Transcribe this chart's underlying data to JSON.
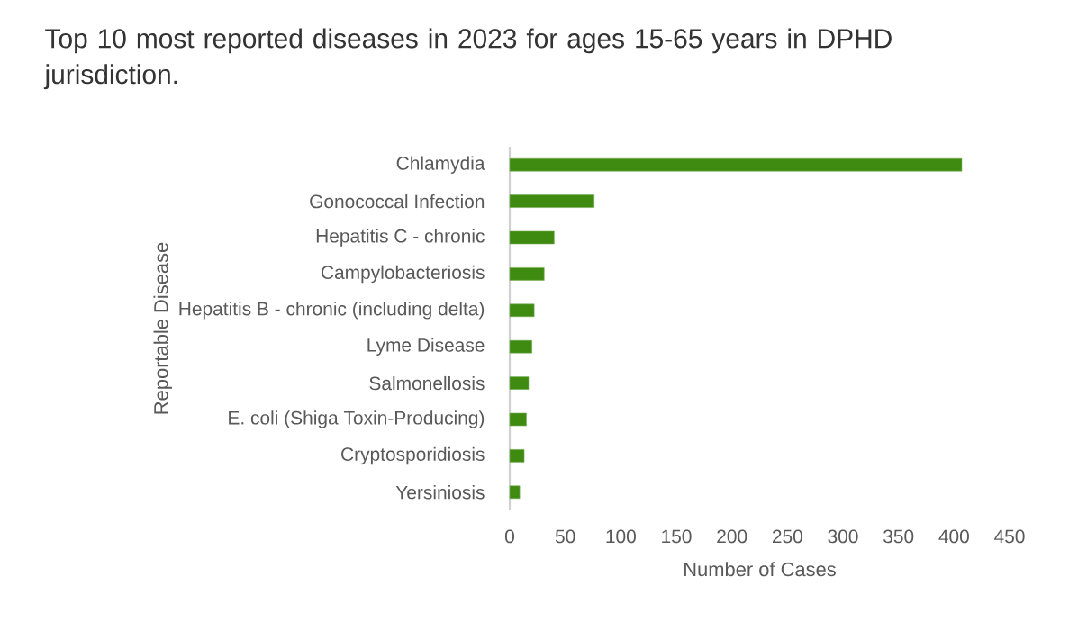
{
  "chart_data": {
    "type": "bar",
    "orientation": "horizontal",
    "title": "Top 10 most reported diseases in 2023 for ages 15-65 years in DPHD jurisdiction.",
    "xlabel": "Number of Cases",
    "ylabel": "Reportable Disease",
    "categories": [
      "Chlamydia",
      "Gonococcal Infection",
      "Hepatitis C - chronic",
      "Campylobacteriosis",
      "Hepatitis B - chronic (including delta)",
      "Lyme Disease",
      "Salmonellosis",
      "E. coli (Shiga Toxin-Producing)",
      "Cryptosporidiosis",
      "Yersiniosis"
    ],
    "values": [
      407,
      76,
      40,
      31,
      22,
      20,
      17,
      15,
      13,
      9
    ],
    "color": "#3f8b12",
    "xlim": [
      0,
      450
    ],
    "xticks": [
      0,
      50,
      100,
      150,
      200,
      250,
      300,
      350,
      400,
      450
    ]
  }
}
